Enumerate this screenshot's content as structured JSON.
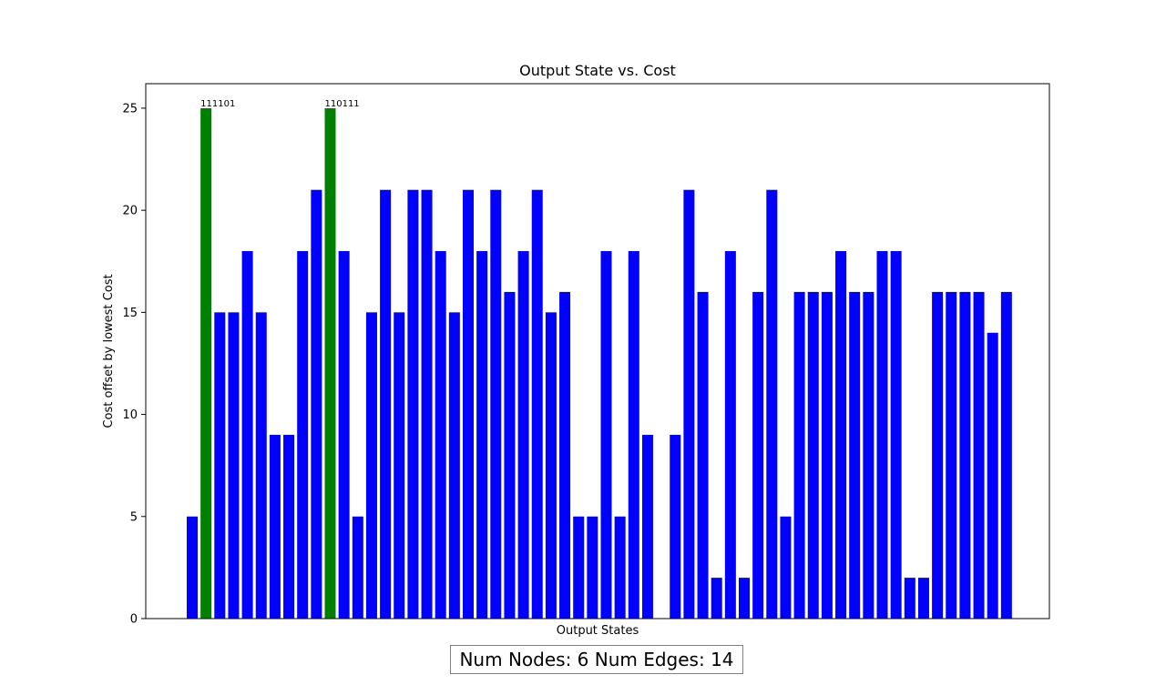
{
  "chart_data": {
    "type": "bar",
    "title": "Output State vs. Cost",
    "xlabel": "Output States",
    "ylabel": "Cost offset by lowest Cost",
    "ylim": [
      0,
      26.2
    ],
    "yticks": [
      0,
      5,
      10,
      15,
      20,
      25
    ],
    "grid": false,
    "legend": "none",
    "colors": {
      "default": "#0000ff",
      "highlight": "#008000"
    },
    "values": [
      5,
      25,
      15,
      15,
      18,
      15,
      9,
      9,
      18,
      21,
      25,
      18,
      5,
      15,
      21,
      15,
      21,
      21,
      18,
      15,
      21,
      18,
      21,
      16,
      18,
      21,
      15,
      16,
      5,
      5,
      18,
      5,
      18,
      9,
      0,
      9,
      21,
      16,
      2,
      18,
      2,
      16,
      21,
      5,
      16,
      16,
      16,
      18,
      16,
      16,
      18,
      18,
      2,
      2,
      16,
      16,
      16,
      16,
      14,
      16
    ],
    "highlight_indices": [
      1,
      10
    ],
    "annotations": [
      {
        "index": 1,
        "text": "111101"
      },
      {
        "index": 10,
        "text": "110111"
      }
    ]
  },
  "info": {
    "text": "Num Nodes: 6 Num Edges: 14"
  }
}
